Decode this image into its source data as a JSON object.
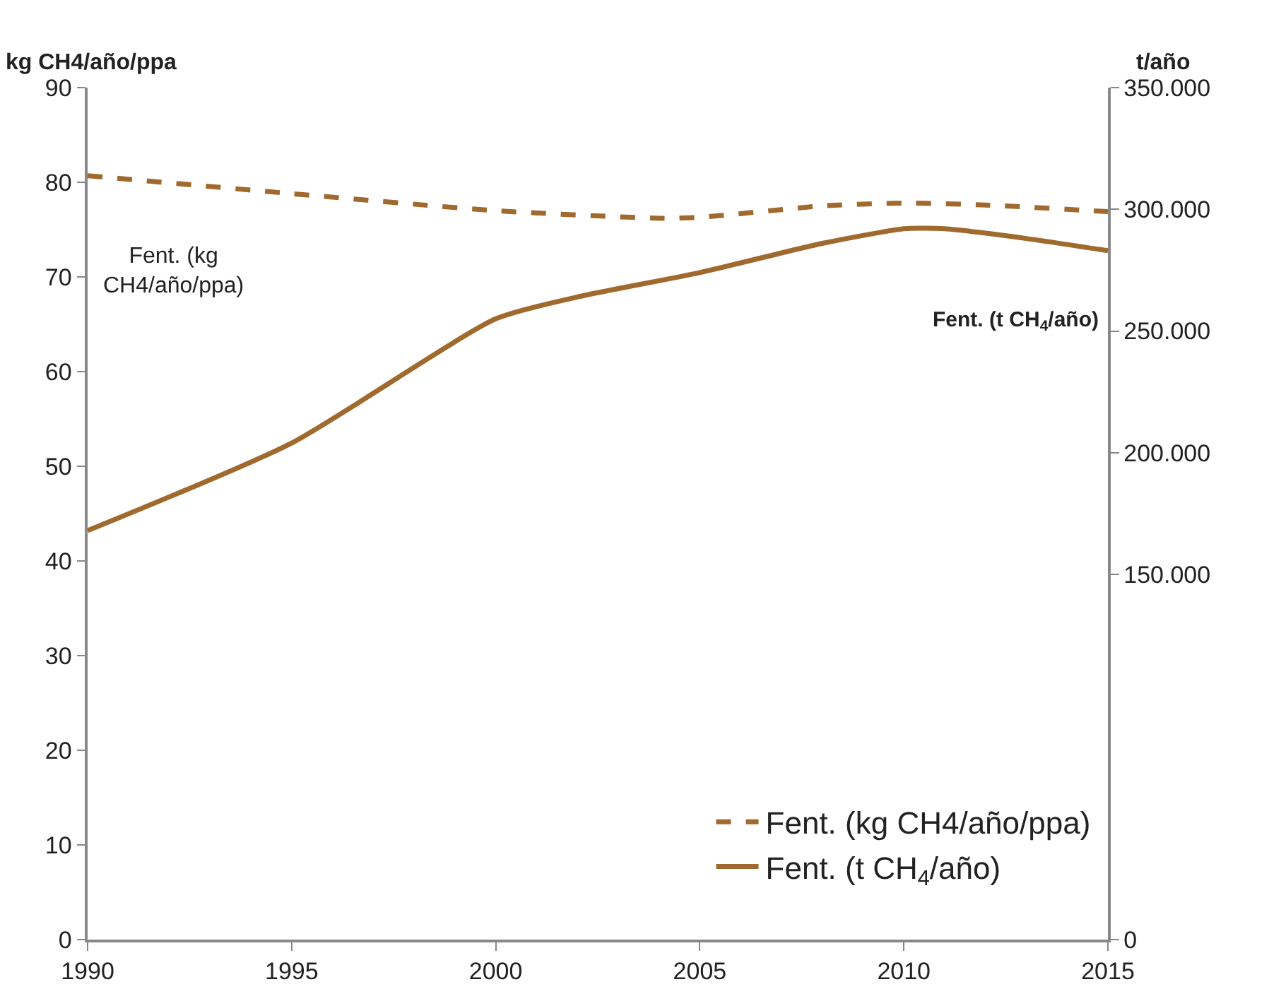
{
  "chart_data": {
    "type": "line",
    "ylabel": "kg CH4/año/ppa",
    "y2label": "t/año",
    "xlim": [
      1990,
      2015
    ],
    "xticks": [
      1990,
      1995,
      2000,
      2005,
      2010,
      2015
    ],
    "ylim": [
      0,
      90
    ],
    "yticks": [
      0,
      10,
      20,
      30,
      40,
      50,
      60,
      70,
      80,
      90
    ],
    "y2lim": [
      0,
      350000
    ],
    "y2ticks": [
      0,
      {
        "value": 150000,
        "label": "150.000"
      },
      {
        "value": 200000,
        "label": "200.000"
      },
      {
        "value": 250000,
        "label": "250.000"
      },
      {
        "value": 300000,
        "label": "300.000"
      },
      {
        "value": 350000,
        "label": "350.000"
      }
    ],
    "annotations": [
      "Fent. (kg\nCH4/año/ppa)",
      "Fent. (t CH$_{4}$/año)"
    ],
    "legend": "bottom right",
    "marker": "none",
    "series": [
      {
        "name": "Fent. (kg CH4/año/ppa)",
        "color": "#a0692e",
        "line_style": "dashed",
        "x": [
          1990,
          1995,
          2000,
          2004,
          2005,
          2008,
          2010,
          2012,
          2015
        ],
        "values": [
          80.7,
          78.8,
          77,
          76.2,
          76.3,
          77.5,
          77.8,
          77.6,
          76.9
        ]
      },
      {
        "name": "Fent. (t CH$_{4}$/año)",
        "color": "#a0692e",
        "line_style": "solid",
        "axis": "y2",
        "x": [
          1990,
          1995,
          2000,
          2002,
          2005,
          2008,
          2010,
          2011,
          2013,
          2015
        ],
        "values": [
          168000,
          204000,
          255000,
          264000,
          274000,
          286000,
          292000,
          292000,
          288000,
          283000
        ]
      }
    ]
  }
}
